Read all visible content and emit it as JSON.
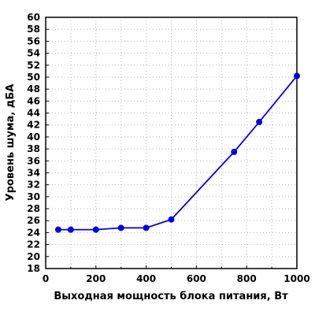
{
  "chart_data": {
    "type": "line",
    "title": "",
    "xlabel": "Выходная мощность блока питания, Вт",
    "ylabel": "Уровень шума, дБА",
    "xlim": [
      0,
      1000
    ],
    "ylim": [
      18,
      60
    ],
    "x_ticks": [
      0,
      200,
      400,
      600,
      800,
      1000
    ],
    "y_ticks": [
      18,
      20,
      22,
      24,
      26,
      28,
      30,
      32,
      34,
      36,
      38,
      40,
      42,
      44,
      46,
      48,
      50,
      52,
      54,
      56,
      58,
      60
    ],
    "grid": true,
    "series": [
      {
        "color": "#0000dd",
        "x": [
          50,
          100,
          200,
          300,
          400,
          500,
          750,
          850,
          1000
        ],
        "y": [
          24.5,
          24.5,
          24.5,
          24.8,
          24.8,
          26.2,
          37.5,
          42.5,
          50.2
        ]
      }
    ]
  }
}
